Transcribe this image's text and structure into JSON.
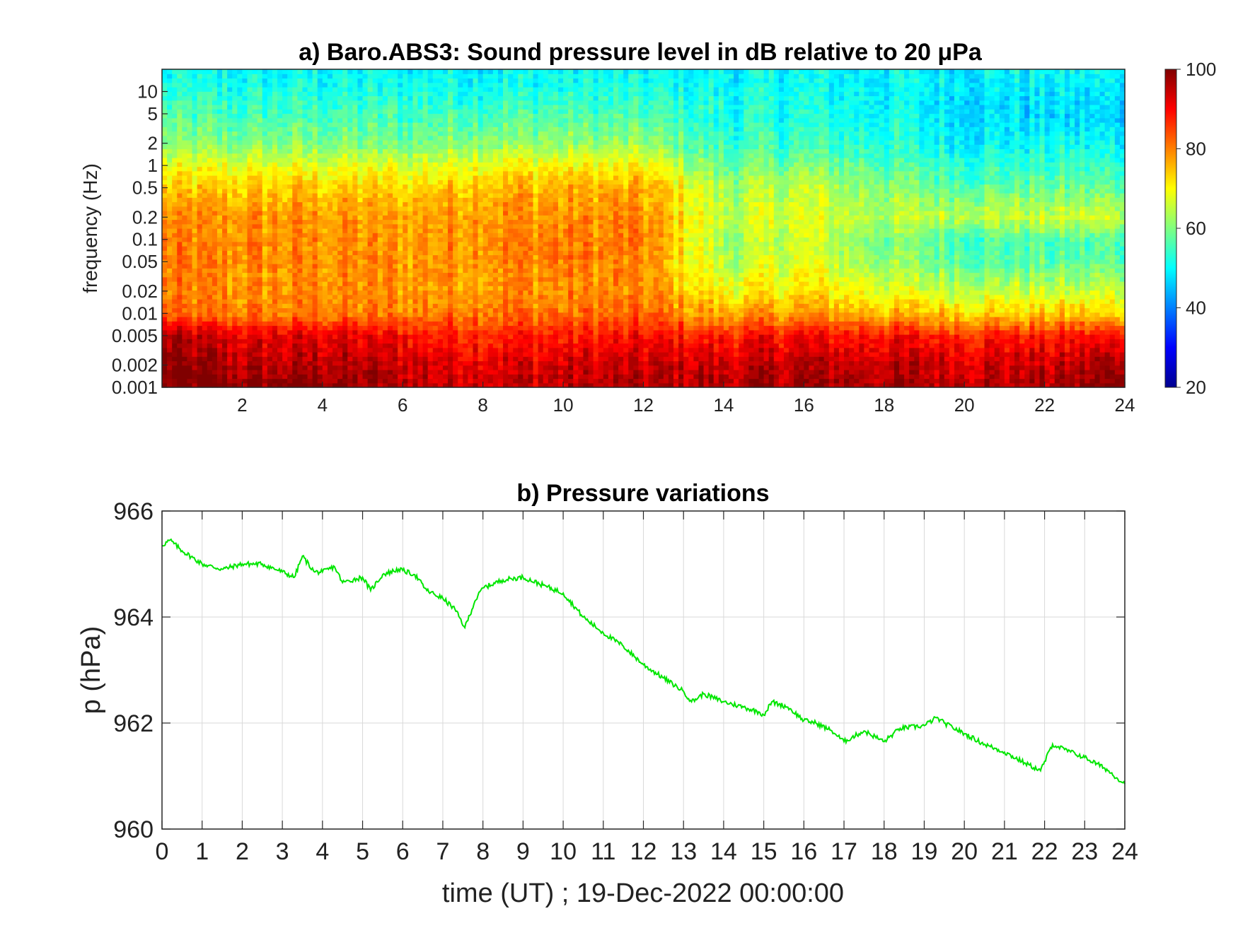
{
  "chart_data": [
    {
      "type": "heatmap",
      "title": "a) Baro.ABS3: Sound pressure level in dB relative to 20 μPa",
      "xlabel": "",
      "ylabel": "frequency (Hz)",
      "xlim": [
        0,
        24
      ],
      "x_ticks": [
        2,
        4,
        6,
        8,
        10,
        12,
        14,
        16,
        18,
        20,
        22,
        24
      ],
      "x_tick_labels": [
        "2",
        "4",
        "6",
        "8",
        "10",
        "12",
        "14",
        "16",
        "18",
        "20",
        "22",
        "24"
      ],
      "y_scale": "log",
      "ylim": [
        0.001,
        20
      ],
      "y_ticks": [
        0.001,
        0.002,
        0.005,
        0.01,
        0.02,
        0.05,
        0.1,
        0.2,
        0.5,
        1,
        2,
        5,
        10
      ],
      "y_tick_labels": [
        "0.001",
        "0.002",
        "0.005",
        "0.01",
        "0.02",
        "0.05",
        "0.1",
        "0.2",
        "0.5",
        "1",
        "2",
        "5",
        "10"
      ],
      "colormap": "jet",
      "clim": [
        20,
        100
      ],
      "colorbar_ticks": [
        20,
        40,
        60,
        80,
        100
      ],
      "colorbar_tick_labels": [
        "20",
        "40",
        "60",
        "80",
        "100"
      ],
      "spl_db_grid": {
        "time_h": [
          0,
          2,
          4,
          6,
          8,
          10,
          12,
          14,
          16,
          18,
          20,
          22,
          24
        ],
        "freq_hz": [
          0.001,
          0.002,
          0.005,
          0.01,
          0.02,
          0.05,
          0.1,
          0.2,
          0.5,
          1,
          2,
          5,
          10,
          20
        ],
        "values": [
          [
            100,
            100,
            96,
            82,
            80,
            80,
            79,
            78,
            74,
            68,
            60,
            56,
            52,
            50
          ],
          [
            100,
            95,
            92,
            80,
            78,
            79,
            79,
            78,
            74,
            68,
            60,
            55,
            52,
            50
          ],
          [
            100,
            96,
            92,
            80,
            79,
            79,
            79,
            78,
            74,
            68,
            60,
            55,
            52,
            50
          ],
          [
            96,
            94,
            90,
            80,
            78,
            78,
            78,
            77,
            73,
            67,
            59,
            55,
            52,
            50
          ],
          [
            95,
            93,
            88,
            82,
            79,
            79,
            80,
            79,
            76,
            70,
            62,
            56,
            52,
            50
          ],
          [
            95,
            93,
            88,
            81,
            79,
            80,
            80,
            79,
            76,
            70,
            62,
            56,
            52,
            50
          ],
          [
            96,
            94,
            89,
            82,
            79,
            79,
            80,
            79,
            76,
            70,
            61,
            56,
            52,
            50
          ],
          [
            96,
            94,
            88,
            76,
            70,
            64,
            62,
            65,
            63,
            58,
            54,
            52,
            51,
            50
          ],
          [
            98,
            95,
            90,
            78,
            72,
            68,
            66,
            68,
            65,
            60,
            55,
            52,
            51,
            50
          ],
          [
            97,
            95,
            89,
            76,
            68,
            62,
            60,
            64,
            61,
            57,
            53,
            51,
            50,
            50
          ],
          [
            96,
            94,
            88,
            74,
            66,
            58,
            56,
            66,
            58,
            54,
            50,
            48,
            49,
            50
          ],
          [
            96,
            94,
            88,
            73,
            66,
            57,
            56,
            66,
            58,
            54,
            50,
            47,
            48,
            50
          ],
          [
            100,
            98,
            90,
            74,
            66,
            58,
            56,
            66,
            58,
            54,
            50,
            47,
            48,
            50
          ]
        ]
      }
    },
    {
      "type": "line",
      "title": "b) Pressure variations",
      "xlabel": "time (UT) ; 19-Dec-2022 00:00:00",
      "ylabel": "p (hPa)",
      "xlim": [
        0,
        24
      ],
      "ylim": [
        960,
        966
      ],
      "x_ticks": [
        0,
        1,
        2,
        3,
        4,
        5,
        6,
        7,
        8,
        9,
        10,
        11,
        12,
        13,
        14,
        15,
        16,
        17,
        18,
        19,
        20,
        21,
        22,
        23,
        24
      ],
      "x_tick_labels": [
        "0",
        "1",
        "2",
        "3",
        "4",
        "5",
        "6",
        "7",
        "8",
        "9",
        "10",
        "11",
        "12",
        "13",
        "14",
        "15",
        "16",
        "17",
        "18",
        "19",
        "20",
        "21",
        "22",
        "23",
        "24"
      ],
      "y_ticks": [
        960,
        962,
        964,
        966
      ],
      "y_tick_labels": [
        "960",
        "962",
        "964",
        "966"
      ],
      "grid": true,
      "line_color": "#00e600",
      "x": [
        0,
        0.2,
        0.5,
        1,
        1.5,
        2,
        2.5,
        3,
        3.3,
        3.5,
        3.8,
        4,
        4.3,
        4.5,
        5,
        5.2,
        5.5,
        5.9,
        6.3,
        6.6,
        7,
        7.3,
        7.55,
        7.8,
        8,
        8.5,
        9,
        9.5,
        10,
        10.5,
        11,
        11.5,
        12,
        12.5,
        13,
        13.2,
        13.5,
        14,
        14.5,
        14.9,
        15,
        15.2,
        15.6,
        16,
        16.3,
        16.7,
        17,
        17.5,
        18,
        18.4,
        19,
        19.3,
        19.5,
        20,
        20.5,
        21,
        21.5,
        21.9,
        22.2,
        22.5,
        23,
        23.5,
        24
      ],
      "y": [
        965.35,
        965.45,
        965.25,
        965.0,
        964.9,
        965.0,
        965.0,
        964.85,
        964.75,
        965.15,
        964.85,
        964.85,
        964.95,
        964.65,
        964.75,
        964.5,
        964.8,
        964.9,
        964.8,
        964.5,
        964.35,
        964.15,
        963.8,
        964.3,
        964.55,
        964.7,
        964.75,
        964.6,
        964.45,
        964.0,
        963.7,
        963.45,
        963.1,
        962.85,
        962.6,
        962.4,
        962.55,
        962.4,
        962.3,
        962.2,
        962.15,
        962.4,
        962.3,
        962.05,
        962.0,
        961.85,
        961.65,
        961.85,
        961.65,
        961.9,
        961.95,
        962.1,
        962.0,
        961.8,
        961.6,
        961.45,
        961.25,
        961.1,
        961.6,
        961.5,
        961.35,
        961.15,
        960.85
      ]
    }
  ]
}
